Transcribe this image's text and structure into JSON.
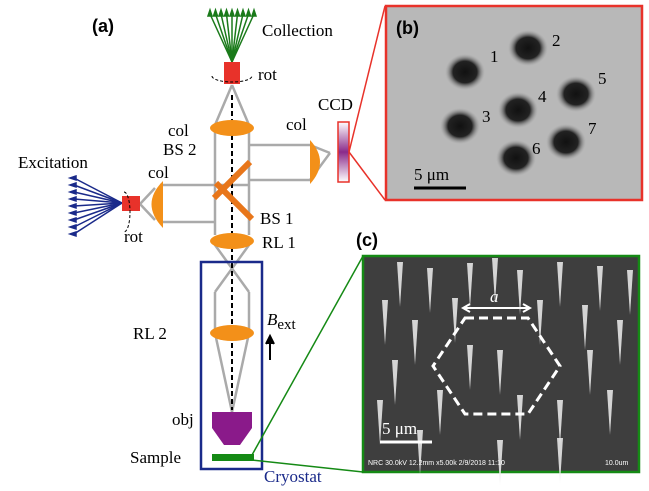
{
  "panel_a": {
    "label": "(a)",
    "collection": "Collection",
    "rot_top": "rot",
    "col_top": "col",
    "ccd": "CCD",
    "col_ccd": "col",
    "bs2": "BS 2",
    "excitation": "Excitation",
    "col_exc": "col",
    "rot_exc": "rot",
    "bs1": "BS 1",
    "rl1": "RL 1",
    "rl2": "RL 2",
    "b_field": {
      "symbol": "B",
      "subscript": "ext"
    },
    "obj": "obj",
    "sample": "Sample",
    "cryostat": "Cryostat"
  },
  "panel_b": {
    "label": "(b)",
    "spots": [
      "1",
      "2",
      "3",
      "4",
      "5",
      "6",
      "7"
    ],
    "scale_bar": "5 μm"
  },
  "panel_c": {
    "label": "(c)",
    "lattice_constant": "a",
    "scale_bar": "5 μm",
    "footer": "NRC 30.0kV 12.2mm x5.00k 2/9/2018 11:10",
    "footer_scale": "10.0um"
  }
}
